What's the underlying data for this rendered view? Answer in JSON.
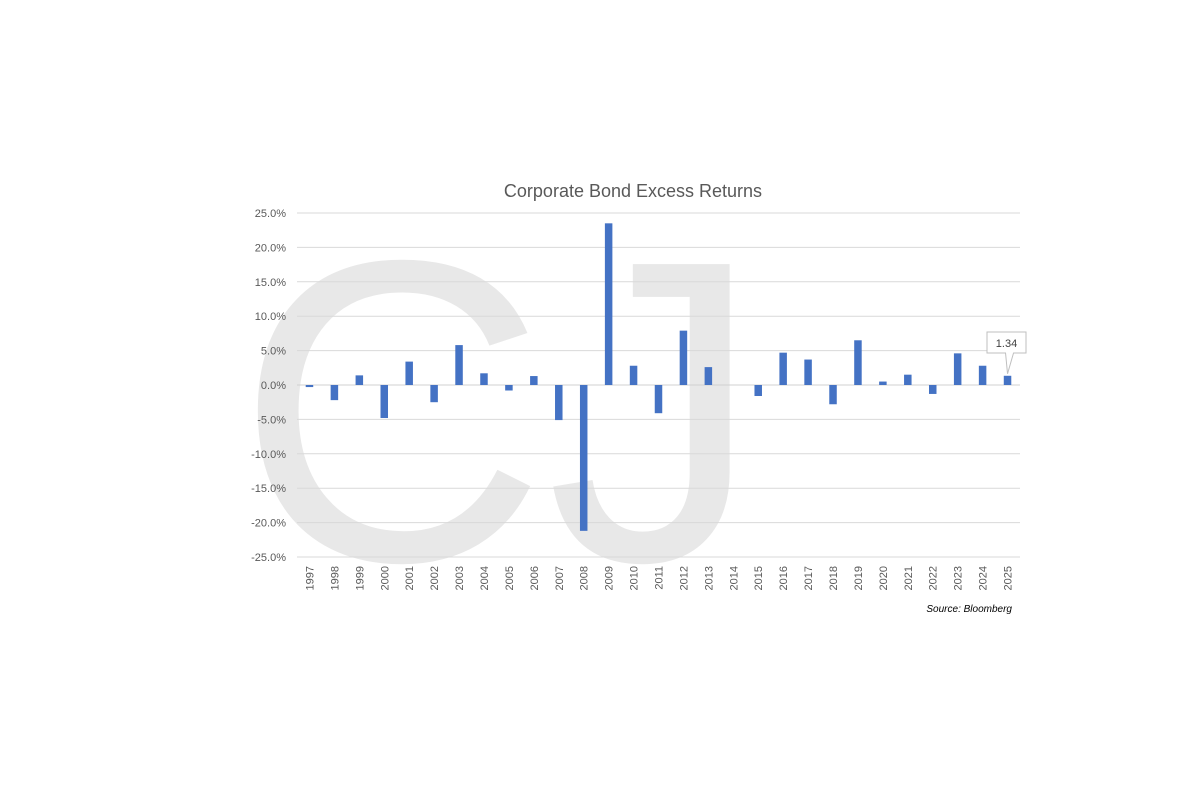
{
  "chart_data": {
    "type": "bar",
    "title": "Corporate Bond Excess Returns",
    "source": "Source: Bloomberg",
    "categories": [
      "1997",
      "1998",
      "1999",
      "2000",
      "2001",
      "2002",
      "2003",
      "2004",
      "2005",
      "2006",
      "2007",
      "2008",
      "2009",
      "2010",
      "2011",
      "2012",
      "2013",
      "2014",
      "2015",
      "2016",
      "2017",
      "2018",
      "2019",
      "2020",
      "2021",
      "2022",
      "2023",
      "2024",
      "2025"
    ],
    "values": [
      -0.3,
      -2.2,
      1.4,
      -4.8,
      3.4,
      -2.5,
      5.8,
      1.7,
      -0.8,
      1.3,
      -5.1,
      -21.2,
      23.5,
      2.8,
      -4.1,
      7.9,
      2.6,
      0.0,
      -1.6,
      4.7,
      3.7,
      -2.8,
      6.5,
      0.5,
      1.5,
      -1.3,
      4.6,
      2.8,
      1.34
    ],
    "ylim": [
      -25,
      25
    ],
    "ytick_step": 5,
    "ytick_labels": [
      "25.0%",
      "20.0%",
      "15.0%",
      "10.0%",
      "5.0%",
      "0.0%",
      "-5.0%",
      "-10.0%",
      "-15.0%",
      "-20.0%",
      "-25.0%"
    ],
    "xlabel": "",
    "ylabel": "",
    "grid": true,
    "legend": false,
    "bar_color": "#4472c4",
    "annotation": {
      "category": "2025",
      "text": "1.34"
    }
  },
  "watermark": {
    "text": "CJ",
    "color": "#e8e8e8"
  }
}
